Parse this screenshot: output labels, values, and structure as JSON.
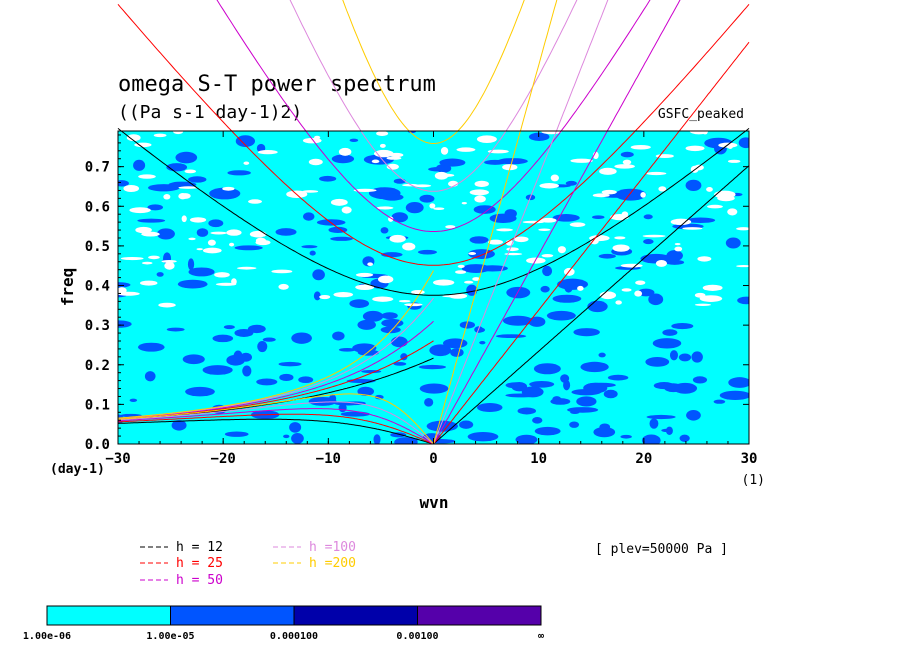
{
  "chart_data": {
    "type": "heatmap",
    "title": "omega S-T power spectrum",
    "subtitle": "((Pa s-1 day-1)2)",
    "model_label": "GSFC_peaked",
    "xlabel": "wvn",
    "ylabel": "freq",
    "x_unit": "(1)",
    "y_unit": "(day-1)",
    "xlim": [
      -30,
      30
    ],
    "ylim": [
      0,
      0.79
    ],
    "x_ticks": [
      -30,
      -20,
      -10,
      0,
      10,
      20,
      30
    ],
    "y_ticks": [
      0.0,
      0.1,
      0.2,
      0.3,
      0.4,
      0.5,
      0.6,
      0.7
    ],
    "level_annotation": "[ plev=50000 Pa ]",
    "colorbar": {
      "colors": [
        "#00ffff",
        "#0055ff",
        "#0000aa",
        "#5500aa"
      ],
      "labels": [
        "1.00e-06",
        "1.00e-05",
        "0.000100",
        "0.00100",
        "∞"
      ]
    },
    "series": [
      {
        "name": "h = 12",
        "color": "#000000",
        "h": 12
      },
      {
        "name": "h = 25",
        "color": "#ff0000",
        "h": 25
      },
      {
        "name": "h = 50",
        "color": "#cc00cc",
        "h": 50
      },
      {
        "name": "h =100",
        "color": "#dd88dd",
        "h": 100
      },
      {
        "name": "h =200",
        "color": "#ffcc00",
        "h": 200
      }
    ]
  }
}
